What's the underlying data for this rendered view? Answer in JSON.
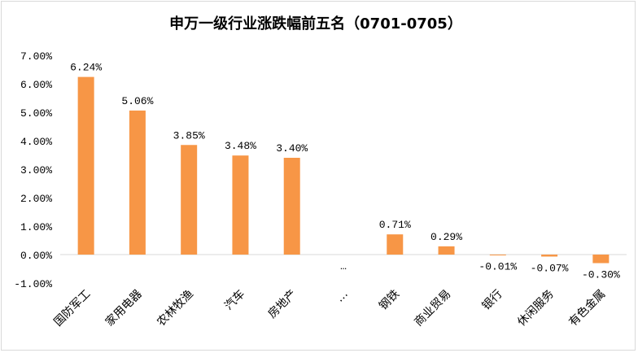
{
  "chart_data": {
    "type": "bar",
    "title": "申万一级行业涨跌幅前五名（0701-0705）",
    "categories": [
      "国防军工",
      "家用电器",
      "农林牧渔",
      "汽车",
      "房地产",
      "…",
      "钢铁",
      "商业贸易",
      "银行",
      "休闲服务",
      "有色金属"
    ],
    "values": [
      6.24,
      5.06,
      3.85,
      3.48,
      3.4,
      null,
      0.71,
      0.29,
      -0.01,
      -0.07,
      -0.3
    ],
    "data_labels": [
      "6.24%",
      "5.06%",
      "3.85%",
      "3.48%",
      "3.40%",
      "",
      "0.71%",
      "0.29%",
      "-0.01%",
      "-0.07%",
      "-0.30%"
    ],
    "ylim": [
      -1,
      7
    ],
    "y_ticks": [
      "-1.00%",
      "0.00%",
      "1.00%",
      "2.00%",
      "3.00%",
      "4.00%",
      "5.00%",
      "6.00%",
      "7.00%"
    ],
    "xlabel": "",
    "ylabel": "",
    "grid": false,
    "legend": "none",
    "bar_color": "#F79646"
  }
}
